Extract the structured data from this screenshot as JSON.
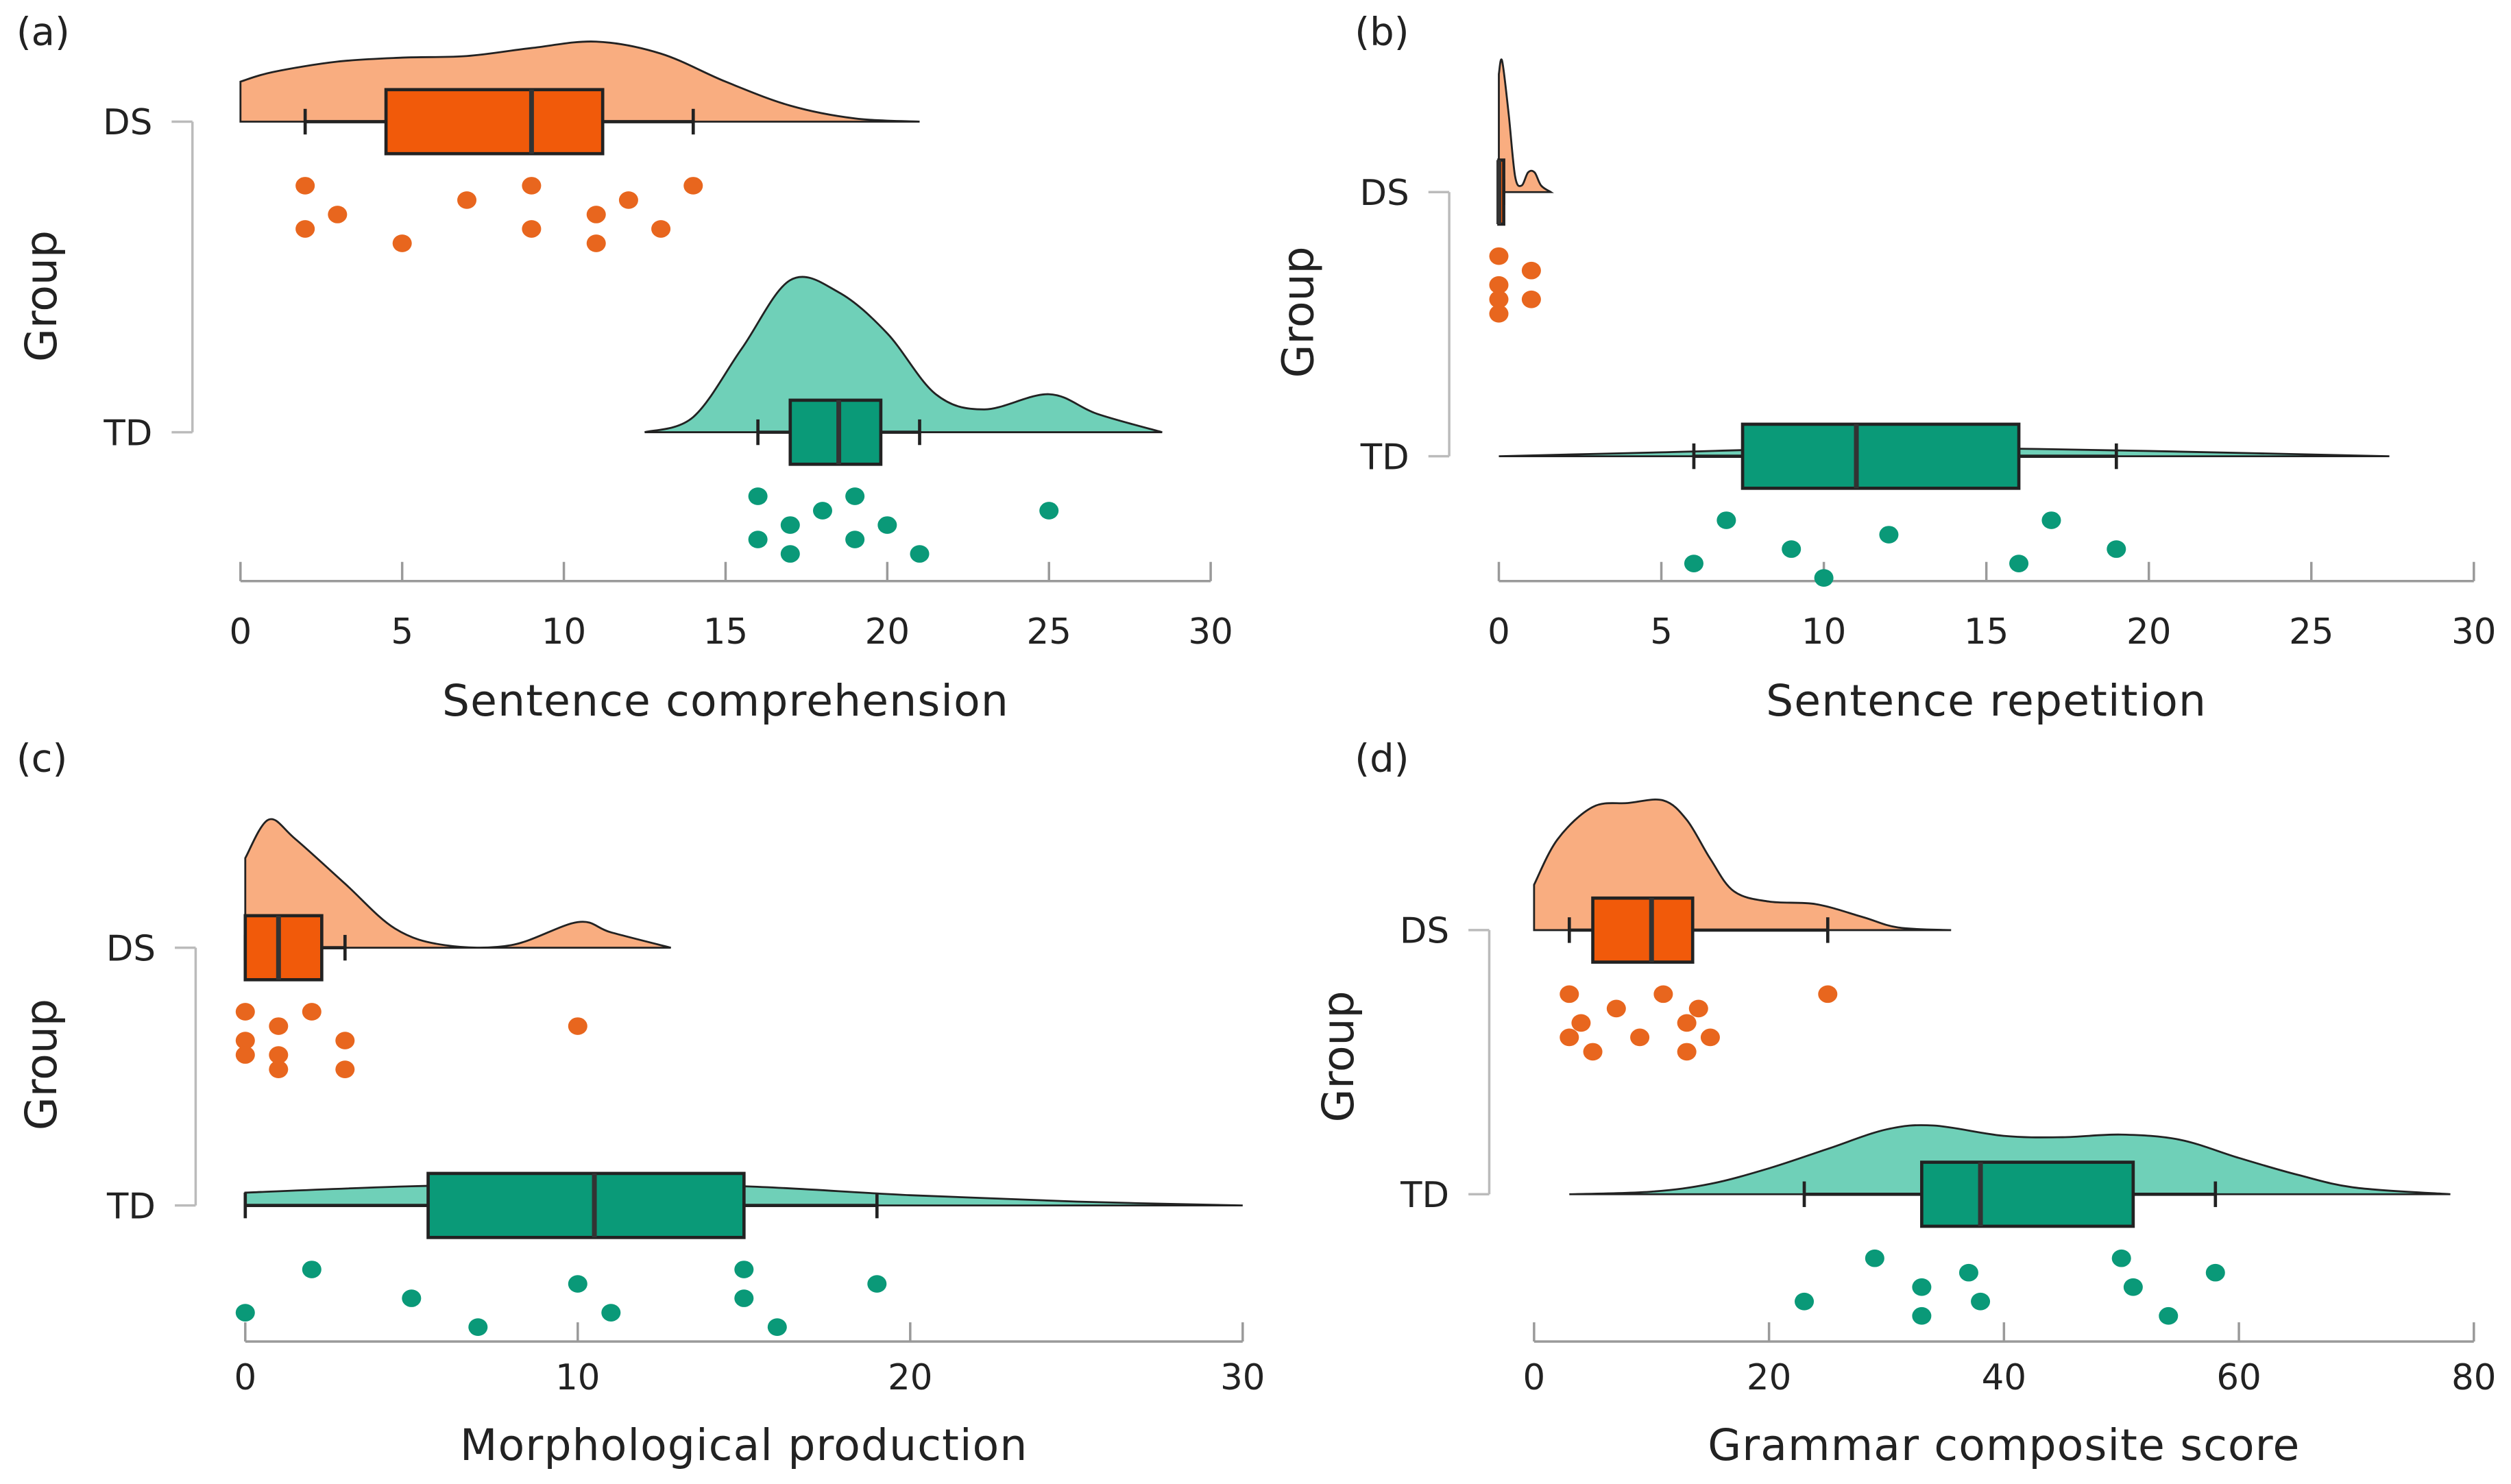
{
  "colors": {
    "ds_density": "#F9AD80",
    "ds_box": "#F15A0A",
    "ds_point": "#E8661E",
    "td_density": "#6FD0B8",
    "td_box": "#0A9A78",
    "td_point": "#0A9978",
    "axis": "#9A9A9A"
  },
  "chart_data": [
    {
      "type": "raincloud",
      "panel_label": "(a)",
      "xlabel": "Sentence comprehension",
      "ylabel": "Group",
      "xlim": [
        0,
        30
      ],
      "xticks": [
        0,
        5,
        10,
        15,
        20,
        25,
        30
      ],
      "groups": [
        {
          "name": "DS",
          "box": {
            "whisker_low": 2,
            "q1": 4.5,
            "median": 9,
            "q3": 11.2,
            "whisker_high": 14
          },
          "points": [
            2,
            2,
            3,
            5,
            7,
            9,
            9,
            11,
            11,
            12,
            13,
            14
          ],
          "density": [
            [
              0,
              0.5
            ],
            [
              1,
              0.62
            ],
            [
              3,
              0.75
            ],
            [
              5,
              0.8
            ],
            [
              7,
              0.82
            ],
            [
              9,
              0.92
            ],
            [
              11,
              1
            ],
            [
              13,
              0.85
            ],
            [
              15,
              0.5
            ],
            [
              17,
              0.2
            ],
            [
              19,
              0.04
            ],
            [
              21,
              0
            ]
          ]
        },
        {
          "name": "TD",
          "box": {
            "whisker_low": 16,
            "q1": 17,
            "median": 18.5,
            "q3": 19.8,
            "whisker_high": 21
          },
          "points": [
            16,
            16,
            17,
            17,
            18,
            19,
            19,
            20,
            21,
            25
          ],
          "density": [
            [
              12.5,
              0
            ],
            [
              14,
              0.1
            ],
            [
              15.5,
              0.55
            ],
            [
              17,
              1
            ],
            [
              18.5,
              0.92
            ],
            [
              20,
              0.65
            ],
            [
              21.5,
              0.25
            ],
            [
              23,
              0.15
            ],
            [
              25,
              0.25
            ],
            [
              26.5,
              0.12
            ],
            [
              28.5,
              0
            ]
          ]
        }
      ]
    },
    {
      "type": "raincloud",
      "panel_label": "(b)",
      "xlabel": "Sentence repetition",
      "ylabel": "Group",
      "xlim": [
        0,
        30
      ],
      "xticks": [
        0,
        5,
        10,
        15,
        20,
        25,
        30
      ],
      "groups": [
        {
          "name": "DS",
          "box": {
            "whisker_low": 0,
            "q1": 0,
            "median": 0,
            "q3": 0.15,
            "whisker_high": 0.15
          },
          "points": [
            0,
            0,
            0,
            0,
            1,
            1
          ],
          "density": [
            [
              0,
              0.9
            ],
            [
              0.1,
              1
            ],
            [
              0.3,
              0.6
            ],
            [
              0.5,
              0.12
            ],
            [
              0.7,
              0.05
            ],
            [
              0.9,
              0.15
            ],
            [
              1.1,
              0.15
            ],
            [
              1.3,
              0.05
            ],
            [
              1.6,
              0
            ]
          ]
        },
        {
          "name": "TD",
          "box": {
            "whisker_low": 6,
            "q1": 7.5,
            "median": 11,
            "q3": 16,
            "whisker_high": 19
          },
          "points": [
            6,
            7,
            9,
            10,
            12,
            16,
            17,
            19
          ],
          "density": [
            [
              0,
              0
            ],
            [
              5,
              0.03
            ],
            [
              10,
              0.06
            ],
            [
              15,
              0.06
            ],
            [
              20,
              0.04
            ],
            [
              27.4,
              0
            ]
          ]
        }
      ]
    },
    {
      "type": "raincloud",
      "panel_label": "(c)",
      "xlabel": "Morphological production",
      "ylabel": "Group",
      "xlim": [
        0,
        30
      ],
      "xticks": [
        0,
        10,
        20,
        30
      ],
      "groups": [
        {
          "name": "DS",
          "box": {
            "whisker_low": 0,
            "q1": 0,
            "median": 1,
            "q3": 2.3,
            "whisker_high": 3
          },
          "points": [
            0,
            0,
            0,
            1,
            1,
            1,
            2,
            3,
            3,
            10
          ],
          "density": [
            [
              0,
              0.7
            ],
            [
              0.7,
              1
            ],
            [
              1.5,
              0.85
            ],
            [
              3,
              0.5
            ],
            [
              4.5,
              0.15
            ],
            [
              6,
              0.02
            ],
            [
              8,
              0.02
            ],
            [
              10,
              0.2
            ],
            [
              11,
              0.12
            ],
            [
              12.8,
              0
            ]
          ]
        },
        {
          "name": "TD",
          "box": {
            "whisker_low": 0,
            "q1": 5.5,
            "median": 10.5,
            "q3": 15,
            "whisker_high": 19
          },
          "points": [
            0,
            2,
            5,
            7,
            10,
            11,
            15,
            15,
            16,
            19
          ],
          "density": [
            [
              0,
              0.1
            ],
            [
              5,
              0.15
            ],
            [
              10,
              0.17
            ],
            [
              15,
              0.15
            ],
            [
              20,
              0.08
            ],
            [
              25,
              0.03
            ],
            [
              30,
              0
            ]
          ]
        }
      ]
    },
    {
      "type": "raincloud",
      "panel_label": "(d)",
      "xlabel": "Grammar composite score",
      "ylabel": "Group",
      "xlim": [
        0,
        80
      ],
      "xticks": [
        0,
        20,
        40,
        60,
        80
      ],
      "groups": [
        {
          "name": "DS",
          "box": {
            "whisker_low": 3,
            "q1": 5,
            "median": 10,
            "q3": 13.5,
            "whisker_high": 25
          },
          "points": [
            3,
            3,
            4,
            5,
            7,
            9,
            11,
            13,
            13,
            14,
            15,
            25
          ],
          "density": [
            [
              0,
              0.35
            ],
            [
              2,
              0.7
            ],
            [
              5,
              0.95
            ],
            [
              8,
              0.98
            ],
            [
              11,
              1
            ],
            [
              13,
              0.85
            ],
            [
              15,
              0.55
            ],
            [
              17,
              0.3
            ],
            [
              20,
              0.22
            ],
            [
              24,
              0.2
            ],
            [
              28,
              0.1
            ],
            [
              31,
              0.02
            ],
            [
              35.5,
              0
            ]
          ]
        },
        {
          "name": "TD",
          "box": {
            "whisker_low": 23,
            "q1": 33,
            "median": 38,
            "q3": 51,
            "whisker_high": 58
          },
          "points": [
            23,
            29,
            33,
            33,
            37,
            38,
            50,
            51,
            54,
            58
          ],
          "density": [
            [
              3,
              0
            ],
            [
              10,
              0.02
            ],
            [
              15,
              0.08
            ],
            [
              20,
              0.2
            ],
            [
              25,
              0.35
            ],
            [
              30,
              0.5
            ],
            [
              34,
              0.53
            ],
            [
              40,
              0.45
            ],
            [
              45,
              0.44
            ],
            [
              50,
              0.46
            ],
            [
              55,
              0.42
            ],
            [
              60,
              0.28
            ],
            [
              65,
              0.15
            ],
            [
              70,
              0.05
            ],
            [
              78,
              0
            ]
          ]
        }
      ]
    }
  ]
}
